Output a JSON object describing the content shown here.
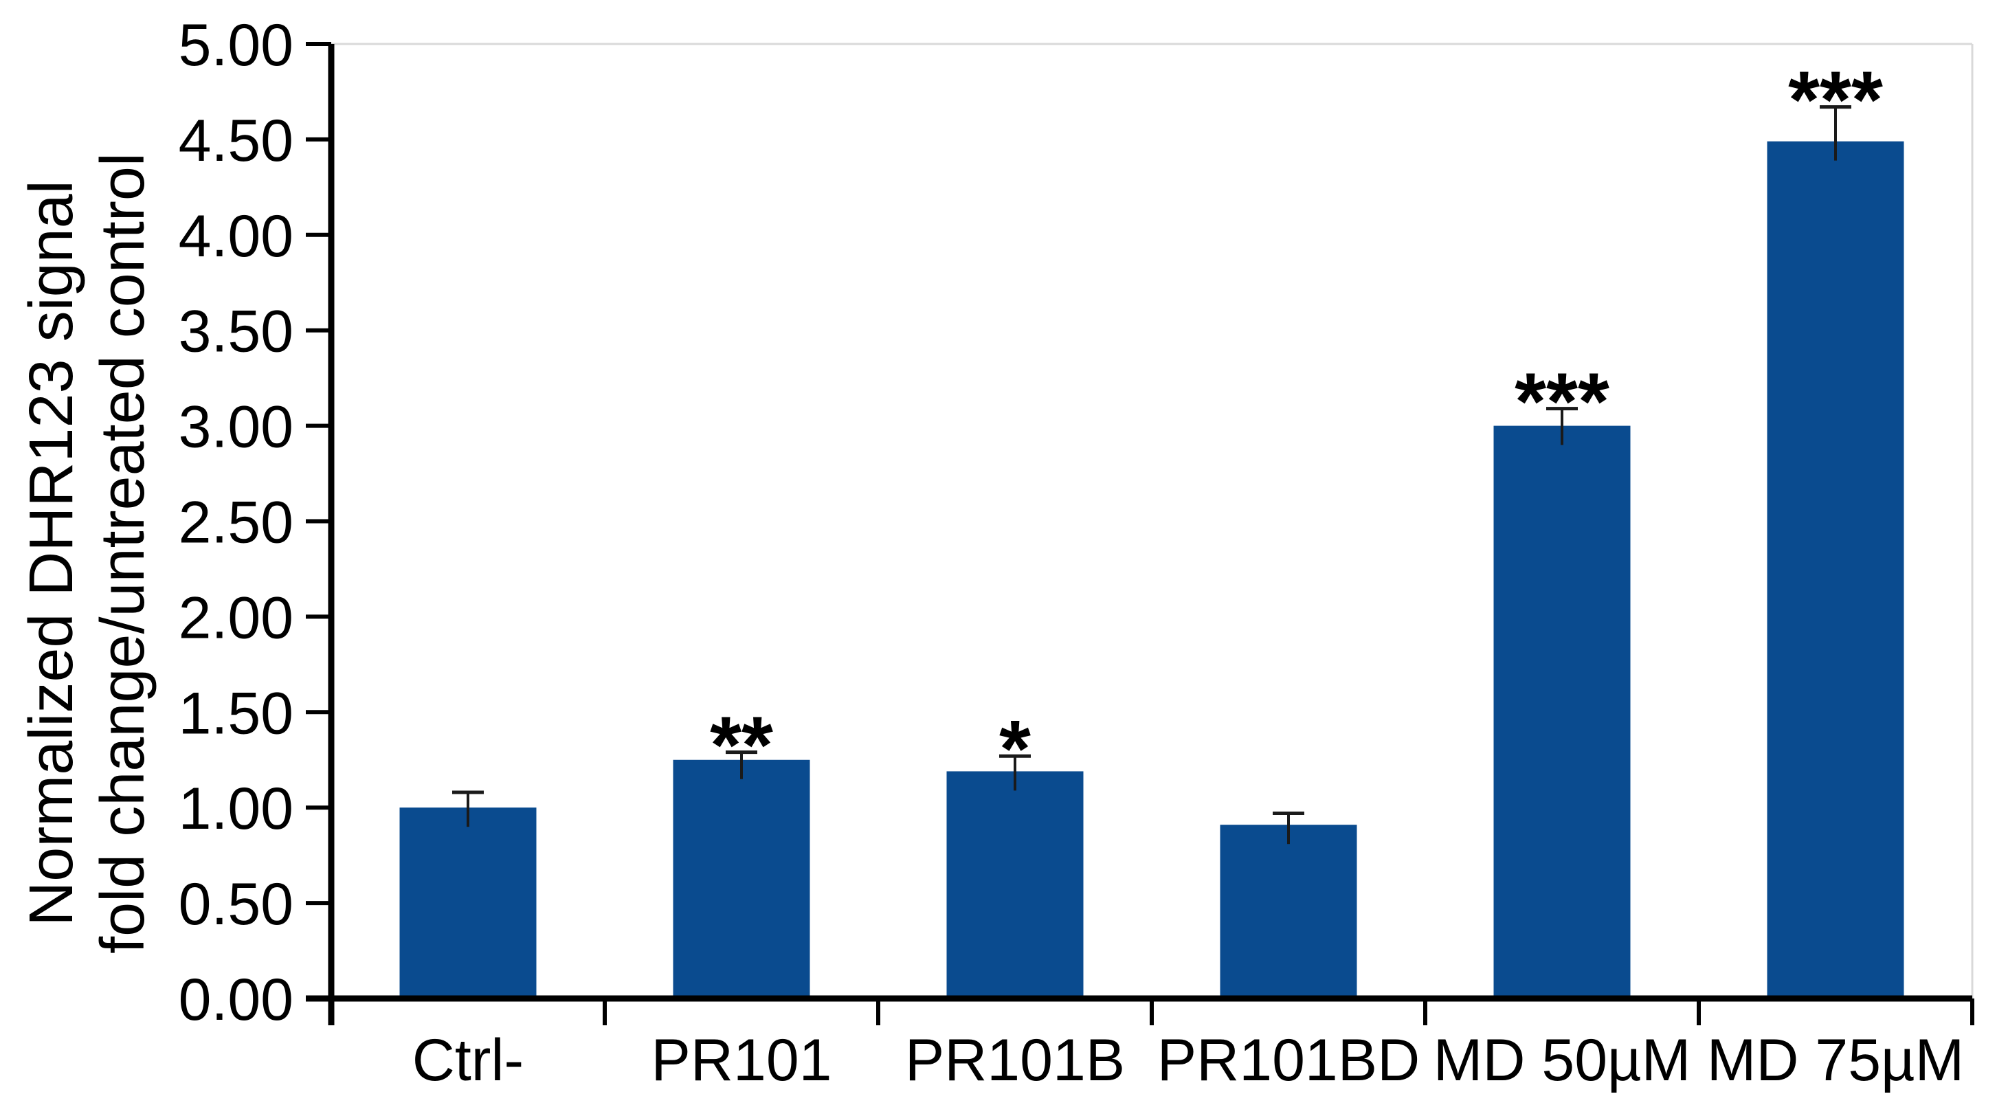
{
  "figure": {
    "background_color": "#ffffff"
  },
  "chart_data": {
    "type": "bar",
    "title": "",
    "xlabel": "",
    "ylabel": "Normalized DHR123 signal fold change/untreated control",
    "ylabel_lines": [
      "Normalized DHR123 signal",
      "fold change/untreated control"
    ],
    "categories": [
      "Ctrl-",
      "PR101",
      "PR101B",
      "PR101BD",
      "MD 50µM",
      "MD 75µM"
    ],
    "values": [
      1.0,
      1.25,
      1.19,
      0.91,
      3.0,
      4.49
    ],
    "errors_upper": [
      0.08,
      0.04,
      0.08,
      0.06,
      0.09,
      0.18
    ],
    "significance": [
      "",
      "**",
      "*",
      "",
      "***",
      "***"
    ],
    "ylim": [
      0,
      5
    ],
    "y_tick_step": 0.5,
    "y_tick_labels": [
      "0.00",
      "0.50",
      "1.00",
      "1.50",
      "2.00",
      "2.50",
      "3.00",
      "3.50",
      "4.00",
      "4.50",
      "5.00"
    ],
    "grid": false,
    "legend": false,
    "bar_color": "#0A4B8F",
    "axis_color": "#000000",
    "error_bar_color": "#1a1a1a",
    "frame_color": "#d9d9d9",
    "text_color": "#000000"
  }
}
